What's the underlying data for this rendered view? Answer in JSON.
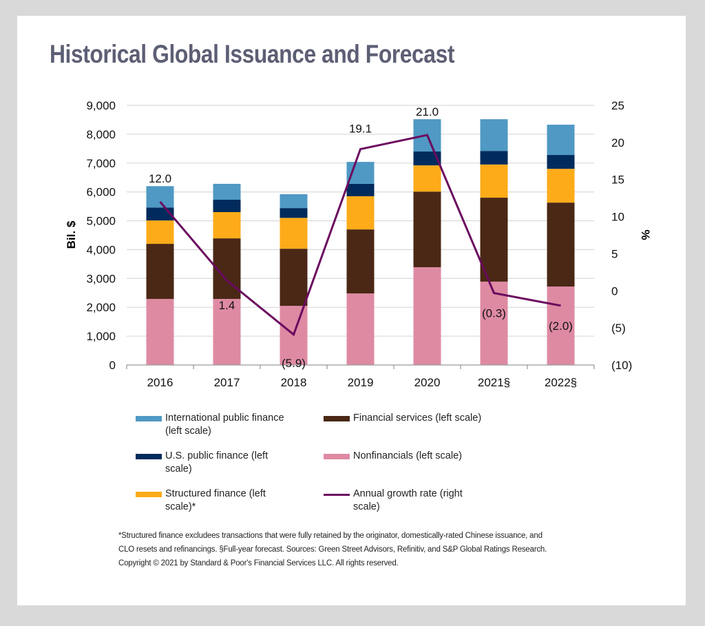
{
  "title": "Historical Global Issuance and Forecast",
  "chart_data": {
    "type": "bar",
    "subtype": "stacked-bar-with-line",
    "title": "Historical Global Issuance and Forecast",
    "categories": [
      "2016",
      "2017",
      "2018",
      "2019",
      "2020",
      "2021§",
      "2022§"
    ],
    "ylabel": "Bil. $",
    "ylabel_right": "%",
    "ylim": [
      0,
      9000
    ],
    "ylim_right": [
      -10,
      25
    ],
    "yticks": [
      "0",
      "1,000",
      "2,000",
      "3,000",
      "4,000",
      "5,000",
      "6,000",
      "7,000",
      "8,000",
      "9,000"
    ],
    "yticks_right": [
      "(10)",
      "(5)",
      "0",
      "5",
      "10",
      "15",
      "20",
      "25"
    ],
    "ytick_values": [
      0,
      1000,
      2000,
      3000,
      4000,
      5000,
      6000,
      7000,
      8000,
      9000
    ],
    "ytick_right_values": [
      -10,
      -5,
      0,
      5,
      10,
      15,
      20,
      25
    ],
    "grid": true,
    "legend_position": "bottom",
    "series": [
      {
        "name": "Nonfinancials (left scale)",
        "color": "#de8aa3",
        "axis": "left",
        "values": [
          2290,
          2290,
          2050,
          2480,
          3390,
          2890,
          2720
        ]
      },
      {
        "name": "Financial services (left scale)",
        "color": "#4a2815",
        "axis": "left",
        "values": [
          1910,
          2100,
          1980,
          2220,
          2620,
          2910,
          2910
        ]
      },
      {
        "name": "Structured finance (left scale)*",
        "color": "#fdab19",
        "axis": "left",
        "values": [
          810,
          910,
          1070,
          1150,
          910,
          1150,
          1170
        ]
      },
      {
        "name": "U.S. public finance (left scale)",
        "color": "#002b5c",
        "axis": "left",
        "values": [
          450,
          430,
          340,
          430,
          480,
          470,
          480
        ]
      },
      {
        "name": "International public finance (left scale)",
        "color": "#4f99c4",
        "axis": "left",
        "values": [
          740,
          550,
          480,
          760,
          1120,
          1100,
          1050
        ]
      },
      {
        "name": "Annual growth rate (right scale)",
        "color": "#6b0a5f",
        "axis": "right",
        "type": "line",
        "values": [
          12.0,
          1.4,
          -5.9,
          19.1,
          21.0,
          -0.3,
          -2.0
        ],
        "labels": [
          "12.0",
          "1.4",
          "(5.9)",
          "19.1",
          "21.0",
          "(0.3)",
          "(2.0)"
        ]
      }
    ]
  },
  "legend": [
    {
      "label": "International public finance (left scale)",
      "color": "#4f99c4",
      "kind": "bar"
    },
    {
      "label": "Financial services (left scale)",
      "color": "#4a2815",
      "kind": "bar"
    },
    {
      "label": "U.S. public finance (left scale)",
      "color": "#002b5c",
      "kind": "bar"
    },
    {
      "label": "Nonfinancials (left scale)",
      "color": "#de8aa3",
      "kind": "bar"
    },
    {
      "label": "Structured finance (left scale)*",
      "color": "#fdab19",
      "kind": "bar"
    },
    {
      "label": "Annual growth rate (right scale)",
      "color": "#6b0a5f",
      "kind": "line"
    }
  ],
  "notes": {
    "footnote": "*Structured finance excludees transactions that were fully retained by the originator, domestically-rated Chinese issuance, and CLO resets and refinancings. §Full-year forecast. Sources: Green Street Advisors, Refinitiv, and S&P Global Ratings Research.",
    "copyright": "Copyright © 2021 by Standard & Poor's Financial Services LLC. All rights reserved."
  }
}
